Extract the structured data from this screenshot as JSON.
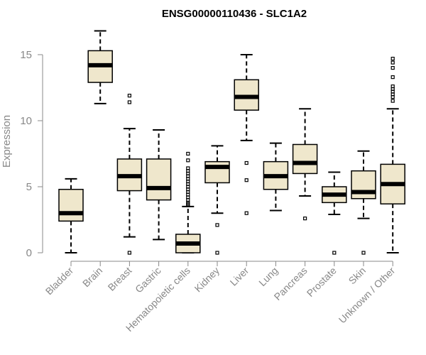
{
  "chart_data": {
    "type": "boxplot",
    "title": "ENSG00000110436 - SLC1A2",
    "ylabel": "Expression",
    "ylim": [
      0,
      16.5
    ],
    "yticks": [
      0,
      5,
      10,
      15
    ],
    "grid": false,
    "categories": [
      "Bladder",
      "Brain",
      "Breast",
      "Gastric",
      "Hematopoietic cells",
      "Kidney",
      "Liver",
      "Lung",
      "Pancreas",
      "Prostate",
      "Skin",
      "Unknown / Other"
    ],
    "boxes": [
      {
        "min": 0.0,
        "q1": 2.4,
        "median": 3.0,
        "q3": 4.8,
        "max": 5.6,
        "outliers": []
      },
      {
        "min": 11.3,
        "q1": 12.9,
        "median": 14.2,
        "q3": 15.3,
        "max": 16.8,
        "outliers": []
      },
      {
        "min": 1.2,
        "q1": 4.7,
        "median": 5.8,
        "q3": 7.1,
        "max": 9.4,
        "outliers": [
          0.0,
          11.4,
          11.9
        ]
      },
      {
        "min": 1.0,
        "q1": 4.0,
        "median": 4.9,
        "q3": 7.1,
        "max": 9.3,
        "outliers": []
      },
      {
        "min": 0.0,
        "q1": 0.0,
        "median": 0.7,
        "q3": 1.4,
        "max": 3.5,
        "outliers": [
          3.6,
          3.7,
          3.8,
          4.0,
          4.2,
          4.4,
          4.6,
          4.8,
          5.0,
          5.2,
          5.4,
          5.6,
          5.8,
          6.0,
          6.2,
          6.4,
          7.0,
          7.5
        ]
      },
      {
        "min": 3.0,
        "q1": 5.3,
        "median": 6.5,
        "q3": 6.9,
        "max": 8.1,
        "outliers": [
          0.0,
          2.1
        ]
      },
      {
        "min": 8.5,
        "q1": 10.8,
        "median": 11.8,
        "q3": 13.1,
        "max": 15.0,
        "outliers": [
          3.0,
          5.5,
          6.8
        ]
      },
      {
        "min": 3.2,
        "q1": 4.8,
        "median": 5.8,
        "q3": 6.9,
        "max": 8.3,
        "outliers": []
      },
      {
        "min": 4.3,
        "q1": 6.0,
        "median": 6.8,
        "q3": 8.2,
        "max": 10.9,
        "outliers": [
          2.6
        ]
      },
      {
        "min": 2.9,
        "q1": 3.8,
        "median": 4.4,
        "q3": 5.0,
        "max": 6.1,
        "outliers": [
          0.0
        ]
      },
      {
        "min": 2.6,
        "q1": 4.1,
        "median": 4.6,
        "q3": 6.2,
        "max": 7.7,
        "outliers": [
          0.0
        ]
      },
      {
        "min": 0.0,
        "q1": 3.7,
        "median": 5.2,
        "q3": 6.7,
        "max": 10.9,
        "outliers": [
          11.5,
          11.8,
          12.0,
          12.2,
          12.4,
          12.6,
          13.3,
          14.0,
          14.4,
          14.7
        ]
      }
    ]
  }
}
